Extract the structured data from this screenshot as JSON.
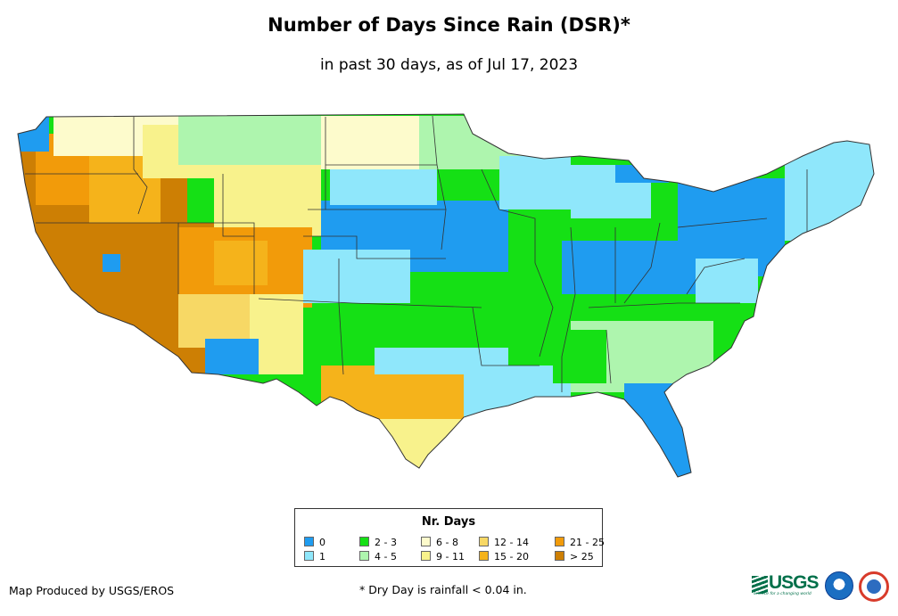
{
  "title": "Number of Days Since Rain (DSR)*",
  "subtitle": "in past 30 days, as of Jul 17, 2023",
  "legend": {
    "title": "Nr. Days",
    "items": [
      {
        "label": "0",
        "color": "#1f9cf0"
      },
      {
        "label": "1",
        "color": "#8fe7fb"
      },
      {
        "label": "2 - 3",
        "color": "#15e015"
      },
      {
        "label": "4 - 5",
        "color": "#aef5ae"
      },
      {
        "label": "6 - 8",
        "color": "#fdfbcc"
      },
      {
        "label": "9 - 11",
        "color": "#f8f28c"
      },
      {
        "label": "12 - 14",
        "color": "#f7d865"
      },
      {
        "label": "15 - 20",
        "color": "#f5b31b"
      },
      {
        "label": "21 - 25",
        "color": "#f29b0a"
      },
      {
        "label": "> 25",
        "color": "#cd7f04"
      }
    ]
  },
  "credit": "Map Produced by USGS/EROS",
  "footnote": "* Dry Day is rainfall < 0.04 in.",
  "logos": {
    "usgs": {
      "text": "USGS",
      "tagline": "science for a changing world",
      "icon": "usgs-wave-icon"
    },
    "noaa": {
      "icon": "noaa-logo-icon"
    },
    "nws": {
      "icon": "nws-logo-icon"
    }
  },
  "map": {
    "region": "Contiguous United States",
    "colors": {
      "c0": "#1f9cf0",
      "c1": "#8fe7fb",
      "c2": "#15e015",
      "c4": "#aef5ae",
      "c6": "#fdfbcc",
      "c9": "#f8f28c",
      "c12": "#f7d865",
      "c15": "#f5b31b",
      "c21": "#f29b0a",
      "c25": "#cd7f04"
    }
  }
}
